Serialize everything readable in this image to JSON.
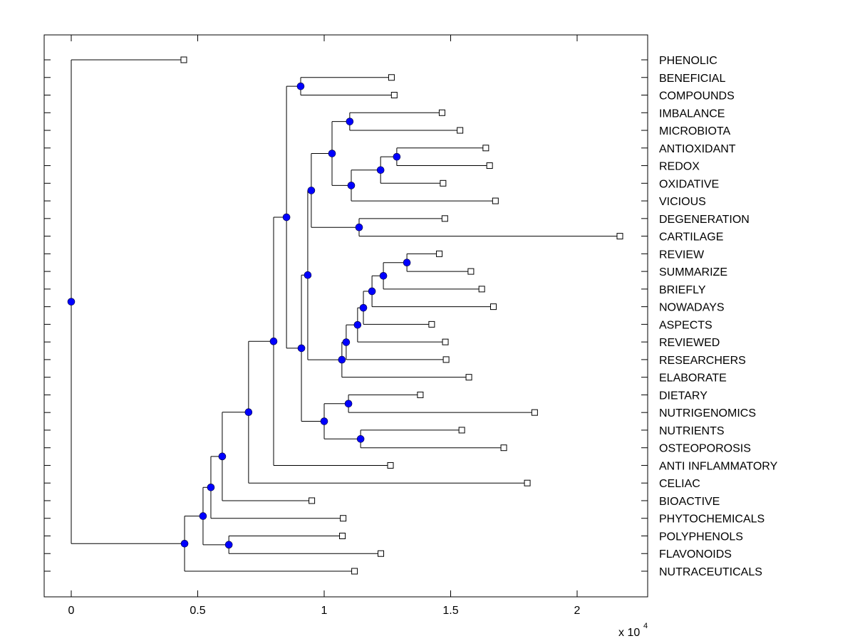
{
  "chart_data": {
    "type": "dendrogram",
    "title": "",
    "xlabel": "",
    "ylabel": "",
    "x_multiplier_label": "x 10",
    "x_multiplier_exponent": "4",
    "xlim": [
      -0.106,
      2.28
    ],
    "xticks": [
      0,
      0.5,
      1,
      1.5,
      2
    ],
    "xtick_labels": [
      "0",
      "0.5",
      "1",
      "1.5",
      "2"
    ],
    "grid": false,
    "units_note": "values in units of 10^4",
    "leaf_order": [
      "PHENOLIC",
      "BENEFICIAL",
      "COMPOUNDS",
      "IMBALANCE",
      "MICROBIOTA",
      "ANTIOXIDANT",
      "REDOX",
      "OXIDATIVE",
      "VICIOUS",
      "DEGENERATION",
      "CARTILAGE",
      "REVIEW",
      "SUMMARIZE",
      "BRIEFLY",
      "NOWADAYS",
      "ASPECTS",
      "REVIEWED",
      "RESEARCHERS",
      "ELABORATE",
      "DIETARY",
      "NUTRIGENOMICS",
      "NUTRIENTS",
      "OSTEOPOROSIS",
      "ANTI INFLAMMATORY",
      "CELIAC",
      "BIOACTIVE",
      "PHYTOCHEMICALS",
      "POLYPHENOLS",
      "FLAVONOIDS",
      "NUTRACEUTICALS"
    ],
    "leaves": {
      "PHENOLIC": 0.445,
      "BENEFICIAL": 1.266,
      "COMPOUNDS": 1.277,
      "IMBALANCE": 1.466,
      "MICROBIOTA": 1.537,
      "ANTIOXIDANT": 1.639,
      "REDOX": 1.654,
      "OXIDATIVE": 1.47,
      "VICIOUS": 1.677,
      "DEGENERATION": 1.477,
      "CARTILAGE": 2.169,
      "REVIEW": 1.455,
      "SUMMARIZE": 1.58,
      "BRIEFLY": 1.623,
      "NOWADAYS": 1.669,
      "ASPECTS": 1.425,
      "REVIEWED": 1.479,
      "RESEARCHERS": 1.482,
      "ELABORATE": 1.572,
      "DIETARY": 1.38,
      "NUTRIGENOMICS": 1.832,
      "NUTRIENTS": 1.544,
      "OSTEOPOROSIS": 1.71,
      "ANTI INFLAMMATORY": 1.262,
      "CELIAC": 1.803,
      "BIOACTIVE": 0.951,
      "PHYTOCHEMICALS": 1.075,
      "POLYPHENOLS": 1.072,
      "FLAVONOIDS": 1.224,
      "NUTRACEUTICALS": 1.12
    },
    "nodes": {
      "root": {
        "value": 0.0,
        "children": [
          "PHENOLIC",
          "A"
        ]
      },
      "A": {
        "value": 0.448,
        "children": [
          "B",
          "NUTRACEUTICALS"
        ]
      },
      "B": {
        "value": 0.521,
        "children": [
          "C",
          "PF"
        ]
      },
      "PF": {
        "value": 0.623,
        "children": [
          "POLYPHENOLS",
          "FLAVONOIDS"
        ]
      },
      "C": {
        "value": 0.552,
        "children": [
          "D",
          "PHYTOCHEMICALS"
        ]
      },
      "D": {
        "value": 0.597,
        "children": [
          "E",
          "BIOACTIVE"
        ]
      },
      "E": {
        "value": 0.701,
        "children": [
          "F",
          "CELIAC"
        ]
      },
      "F": {
        "value": 0.8,
        "children": [
          "G",
          "ANTI INFLAMMATORY"
        ]
      },
      "G": {
        "value": 0.851,
        "children": [
          "H",
          "I"
        ]
      },
      "H": {
        "value": 0.907,
        "children": [
          "BENEFICIAL",
          "COMPOUNDS"
        ]
      },
      "I": {
        "value": 0.91,
        "children": [
          "J",
          "K"
        ]
      },
      "J": {
        "value": 0.935,
        "children": [
          "L",
          "M"
        ]
      },
      "L": {
        "value": 0.949,
        "children": [
          "N",
          "O"
        ]
      },
      "N": {
        "value": 1.031,
        "children": [
          "P",
          "Q"
        ]
      },
      "P": {
        "value": 1.101,
        "children": [
          "IMBALANCE",
          "MICROBIOTA"
        ]
      },
      "Q": {
        "value": 1.107,
        "children": [
          "R",
          "VICIOUS"
        ]
      },
      "R": {
        "value": 1.223,
        "children": [
          "S",
          "OXIDATIVE"
        ]
      },
      "S": {
        "value": 1.287,
        "children": [
          "ANTIOXIDANT",
          "REDOX"
        ]
      },
      "O": {
        "value": 1.138,
        "children": [
          "DEGENERATION",
          "CARTILAGE"
        ]
      },
      "M": {
        "value": 1.07,
        "children": [
          "T",
          "ELABORATE"
        ]
      },
      "T": {
        "value": 1.087,
        "children": [
          "U",
          "RESEARCHERS"
        ]
      },
      "U": {
        "value": 1.132,
        "children": [
          "V",
          "REVIEWED"
        ]
      },
      "V": {
        "value": 1.155,
        "children": [
          "W",
          "ASPECTS"
        ]
      },
      "W": {
        "value": 1.189,
        "children": [
          "X",
          "NOWADAYS"
        ]
      },
      "X": {
        "value": 1.234,
        "children": [
          "Y",
          "BRIEFLY"
        ]
      },
      "Y": {
        "value": 1.327,
        "children": [
          "REVIEW",
          "SUMMARIZE"
        ]
      },
      "K": {
        "value": 1.0,
        "children": [
          "Z1",
          "Z2"
        ]
      },
      "Z1": {
        "value": 1.096,
        "children": [
          "DIETARY",
          "NUTRIGENOMICS"
        ]
      },
      "Z2": {
        "value": 1.144,
        "children": [
          "NUTRIENTS",
          "OSTEOPOROSIS"
        ]
      }
    },
    "colors": {
      "node_fill": "#0000ff",
      "leaf_fill": "#ffffff",
      "line": "#000000"
    }
  }
}
